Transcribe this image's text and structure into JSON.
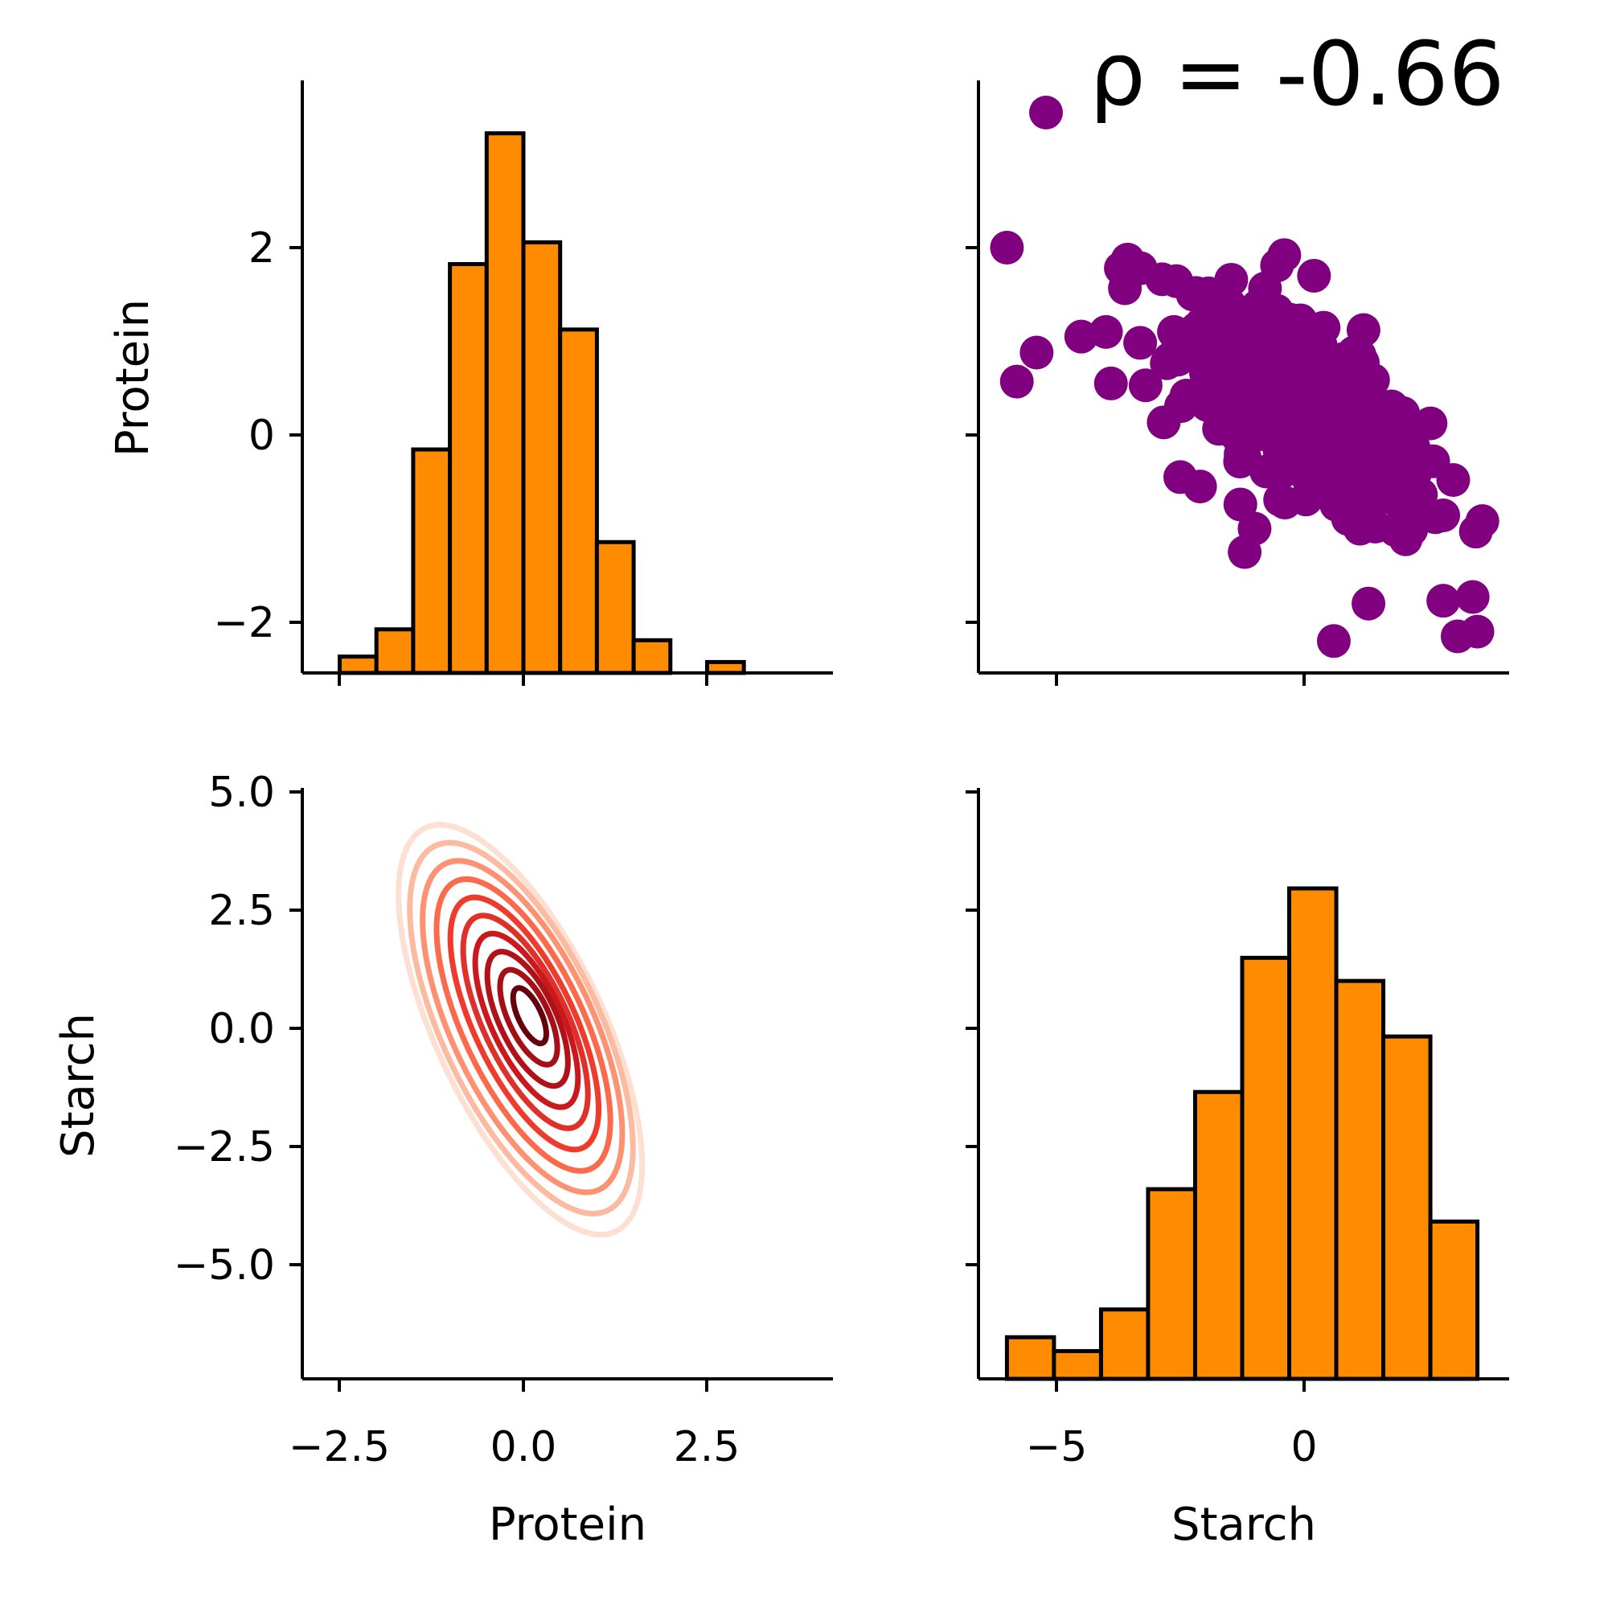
{
  "colors": {
    "hist_fill": "#FF8C00",
    "hist_edge": "#000000",
    "scatter": "#800080",
    "kde_colormap": "Reds"
  },
  "annotation": {
    "text": "ρ = -0.66"
  },
  "axes": {
    "protein_label": "Protein",
    "starch_label": "Starch",
    "protein_ticks_x": [
      "−2.5",
      "0.0",
      "2.5"
    ],
    "protein_ticks_y": [
      "−2",
      "0",
      "2"
    ],
    "starch_ticks_y": [
      "5.0",
      "2.5",
      "0.0",
      "−2.5",
      "−5.0"
    ],
    "starch_ticks_x": [
      "−5",
      "0"
    ]
  },
  "chart_data": [
    {
      "type": "bar",
      "panel": "top-left",
      "variable": "Protein",
      "bin_edges": [
        -2.5,
        -2.0,
        -1.5,
        -1.0,
        -0.5,
        0.0,
        0.5,
        1.0,
        1.5,
        2.0,
        2.5,
        3.0,
        3.5
      ],
      "densities": [
        0.03,
        0.08,
        0.41,
        0.75,
        0.99,
        0.79,
        0.63,
        0.24,
        0.06,
        0.0,
        0.02,
        0.0
      ],
      "xlim": [
        -3.0,
        4.2
      ],
      "ylabel": "Protein",
      "y_ticks": [
        -2,
        0,
        2
      ]
    },
    {
      "type": "scatter",
      "panel": "top-right",
      "x_variable": "Starch",
      "y_variable": "Protein",
      "xlim": [
        -6.5,
        4.2
      ],
      "ylim": [
        -2.55,
        3.75
      ],
      "legend": "top-right",
      "outliers": [
        [
          -6.0,
          2.0
        ],
        [
          -5.4,
          0.88
        ],
        [
          -5.8,
          0.57
        ],
        [
          -3.7,
          1.78
        ],
        [
          -3.3,
          1.78
        ],
        [
          -4.5,
          1.05
        ],
        [
          -4.0,
          1.1
        ],
        [
          -3.9,
          0.55
        ],
        [
          -3.2,
          0.53
        ],
        [
          -0.4,
          1.92
        ],
        [
          0.2,
          1.7
        ],
        [
          1.2,
          1.12
        ],
        [
          3.6,
          -0.92
        ],
        [
          3.5,
          -2.1
        ],
        [
          3.1,
          -2.15
        ],
        [
          0.6,
          -2.2
        ],
        [
          1.3,
          -1.8
        ],
        [
          -1.2,
          -1.25
        ],
        [
          -2.1,
          -0.55
        ],
        [
          -2.5,
          -0.45
        ],
        [
          -1.0,
          -1.0
        ]
      ],
      "annotation": "ρ = -0.66"
    },
    {
      "type": "contour",
      "panel": "bottom-left",
      "x_variable": "Protein",
      "y_variable": "Starch",
      "xlim": [
        -3.0,
        4.2
      ],
      "ylim": [
        -7.3,
        5.1
      ],
      "center": [
        0.1,
        0.3
      ],
      "sd": [
        0.65,
        1.7
      ],
      "correlation": -0.66,
      "levels": 10,
      "colormap": "Reds",
      "xlabel": "Protein",
      "ylabel": "Starch"
    },
    {
      "type": "bar",
      "panel": "bottom-right",
      "variable": "Starch",
      "bin_edges": [
        -6.0,
        -5.05,
        -4.1,
        -3.15,
        -2.2,
        -1.25,
        -0.3,
        0.65,
        1.6,
        2.55,
        3.5
      ],
      "heights": [
        0.45,
        0.3,
        0.75,
        2.05,
        3.1,
        4.55,
        5.3,
        4.3,
        3.7,
        1.7
      ],
      "xlim": [
        -6.5,
        4.2
      ],
      "xlabel": "Starch"
    }
  ]
}
